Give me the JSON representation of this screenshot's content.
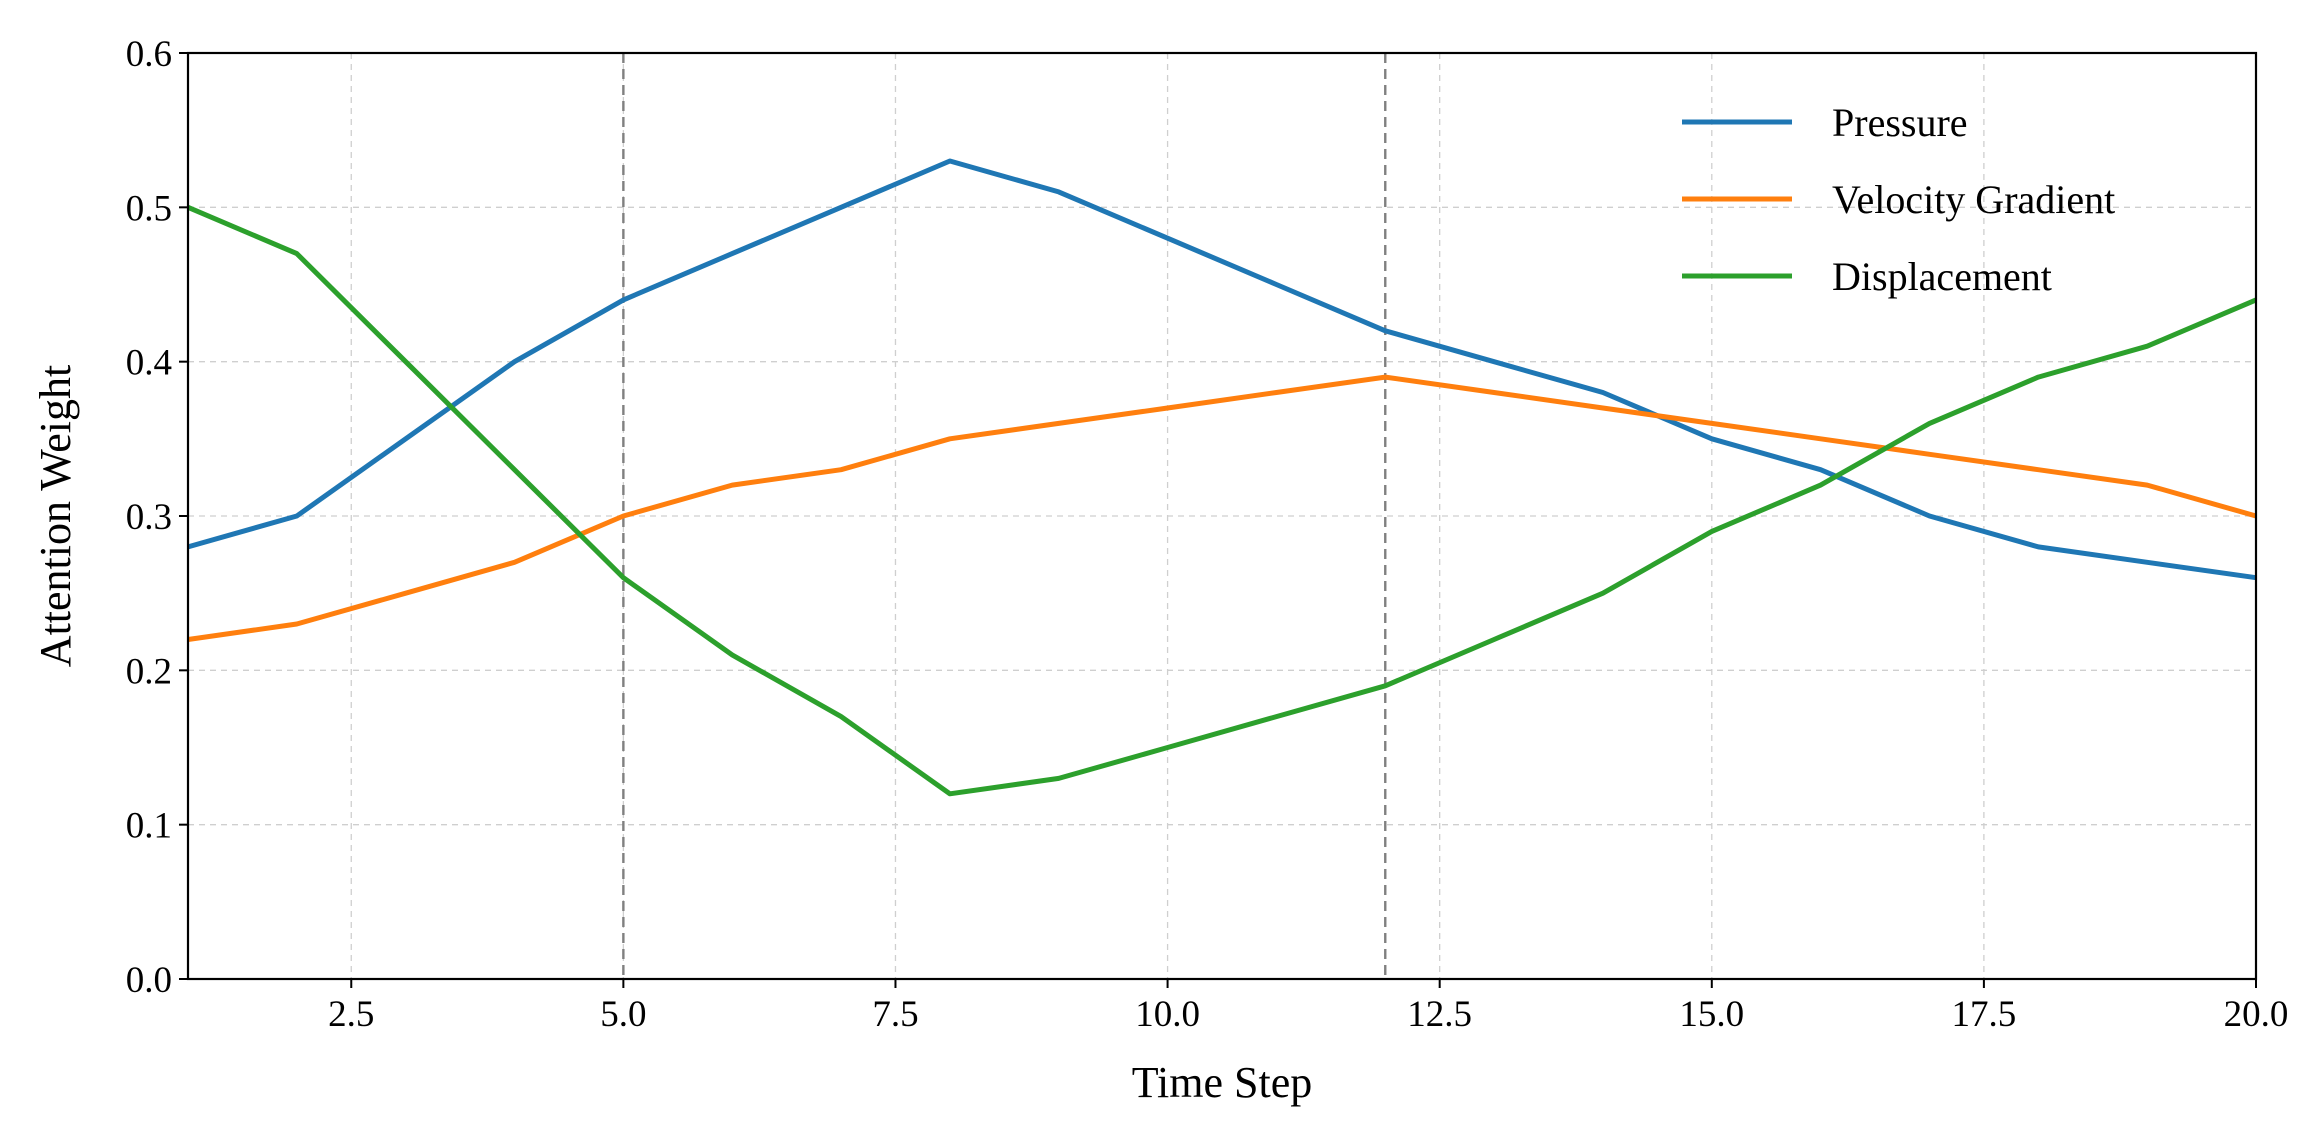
{
  "chart_data": {
    "type": "line",
    "title": "",
    "xlabel": "Time Step",
    "ylabel": "Attention Weight",
    "xlim": [
      1,
      20
    ],
    "ylim": [
      0.0,
      0.6
    ],
    "xticks": [
      2.5,
      5.0,
      7.5,
      10.0,
      12.5,
      15.0,
      17.5,
      20.0
    ],
    "xtick_labels": [
      "2.5",
      "5.0",
      "7.5",
      "10.0",
      "12.5",
      "15.0",
      "17.5",
      "20.0"
    ],
    "yticks": [
      0.0,
      0.1,
      0.2,
      0.3,
      0.4,
      0.5,
      0.6
    ],
    "ytick_labels": [
      "0.0",
      "0.1",
      "0.2",
      "0.3",
      "0.4",
      "0.5",
      "0.6"
    ],
    "grid": true,
    "legend_position": "top-right",
    "vertical_markers": [
      5,
      12
    ],
    "x": [
      1,
      2,
      3,
      4,
      5,
      6,
      7,
      8,
      9,
      10,
      11,
      12,
      13,
      14,
      15,
      16,
      17,
      18,
      19,
      20
    ],
    "series": [
      {
        "name": "Pressure",
        "color": "#1f77b4",
        "values": [
          0.28,
          0.3,
          0.35,
          0.4,
          0.44,
          0.47,
          0.5,
          0.53,
          0.51,
          0.48,
          0.45,
          0.42,
          0.4,
          0.38,
          0.35,
          0.33,
          0.3,
          0.28,
          0.27,
          0.26
        ]
      },
      {
        "name": "Velocity Gradient",
        "color": "#ff7f0e",
        "values": [
          0.22,
          0.23,
          0.25,
          0.27,
          0.3,
          0.32,
          0.33,
          0.35,
          0.36,
          0.37,
          0.38,
          0.39,
          0.38,
          0.37,
          0.36,
          0.35,
          0.34,
          0.33,
          0.32,
          0.3
        ]
      },
      {
        "name": "Displacement",
        "color": "#2ca02c",
        "values": [
          0.5,
          0.47,
          0.4,
          0.33,
          0.26,
          0.21,
          0.17,
          0.12,
          0.13,
          0.15,
          0.17,
          0.19,
          0.22,
          0.25,
          0.29,
          0.32,
          0.36,
          0.39,
          0.41,
          0.44
        ]
      }
    ]
  }
}
